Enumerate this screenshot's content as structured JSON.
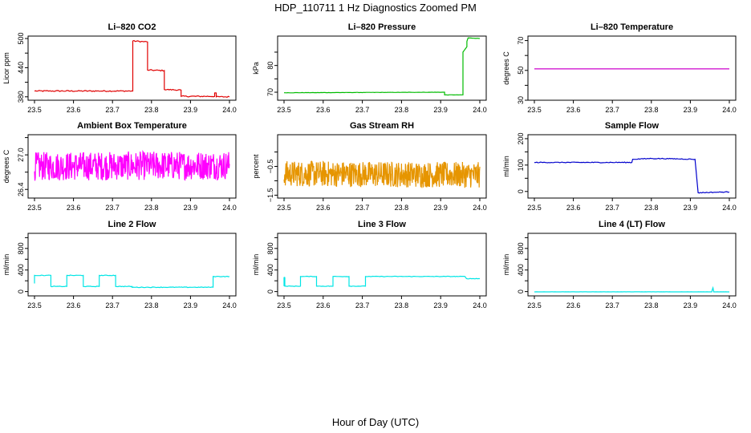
{
  "figure": {
    "title": "HDP_110711  1 Hz Diagnostics Zoomed PM",
    "xlabel": "Hour of Day (UTC)"
  },
  "chart_data": [
    {
      "type": "line",
      "title": "Li–820 CO2",
      "ylabel": "Licor ppm",
      "color": "#e00000",
      "xlim": [
        23.5,
        24.0
      ],
      "xticks": [
        "23.5",
        "23.6",
        "23.7",
        "23.8",
        "23.9",
        "24.0"
      ],
      "ylim": [
        373,
        505
      ],
      "yticks": [
        "380",
        "440",
        "500"
      ],
      "ytick_values": [
        380,
        440,
        500
      ],
      "extra_ytick_values": [
        410,
        470
      ],
      "noise": 1.2,
      "x": [
        23.5,
        23.752,
        23.752,
        23.79,
        23.79,
        23.833,
        23.833,
        23.876,
        23.876,
        23.962,
        23.962,
        23.966,
        23.966,
        24.0
      ],
      "y": [
        392,
        392,
        495,
        493,
        435,
        434,
        395,
        394,
        381,
        381,
        388,
        388,
        380,
        380
      ]
    },
    {
      "type": "line",
      "title": "Li–820 Pressure",
      "ylabel": "kPa",
      "color": "#00bb00",
      "xlim": [
        23.5,
        24.0
      ],
      "xticks": [
        "23.5",
        "23.6",
        "23.7",
        "23.8",
        "23.9",
        "24.0"
      ],
      "ylim": [
        67,
        91
      ],
      "yticks": [
        "70",
        "80"
      ],
      "ytick_values": [
        70,
        80
      ],
      "extra_ytick_values": [
        75,
        85
      ],
      "noise": 0.05,
      "x": [
        23.5,
        23.91,
        23.91,
        23.957,
        23.957,
        23.967,
        23.967,
        23.97,
        23.97,
        24.0
      ],
      "y": [
        69.8,
        70.0,
        69.0,
        69.0,
        85.0,
        87.0,
        89.0,
        90.3,
        90.3,
        90.1
      ]
    },
    {
      "type": "line",
      "title": "Li–820 Temperature",
      "ylabel": "degrees C",
      "color": "#cc00cc",
      "xlim": [
        23.5,
        24.0
      ],
      "xticks": [
        "23.5",
        "23.6",
        "23.7",
        "23.8",
        "23.9",
        "24.0"
      ],
      "ylim": [
        30,
        73
      ],
      "yticks": [
        "30",
        "50",
        "70"
      ],
      "ytick_values": [
        30,
        50,
        70
      ],
      "extra_ytick_values": [
        40,
        60
      ],
      "noise": 0,
      "x": [
        23.5,
        24.0
      ],
      "y": [
        51,
        51
      ]
    },
    {
      "type": "line",
      "title": "Ambient Box Temperature",
      "ylabel": "degrees C",
      "color": "#ff00ff",
      "xlim": [
        23.5,
        24.0
      ],
      "xticks": [
        "23.5",
        "23.6",
        "23.7",
        "23.8",
        "23.9",
        "24.0"
      ],
      "ylim": [
        26.25,
        27.35
      ],
      "yticks": [
        "26.4",
        "27.0"
      ],
      "ytick_values": [
        26.4,
        27.0
      ],
      "extra_ytick_values": [
        26.7,
        27.3
      ],
      "noise": 0.25,
      "points": 500,
      "x": [
        23.5,
        24.0
      ],
      "y": [
        26.8,
        26.82
      ]
    },
    {
      "type": "line",
      "title": "Gas Stream RH",
      "ylabel": "percent",
      "color": "#e69500",
      "xlim": [
        23.5,
        24.0
      ],
      "xticks": [
        "23.5",
        "23.6",
        "23.7",
        "23.8",
        "23.9",
        "24.0"
      ],
      "ylim": [
        -1.6,
        0.6
      ],
      "yticks": [
        "−1.5",
        "−0.5"
      ],
      "ytick_values": [
        -1.5,
        -0.5
      ],
      "extra_ytick_values": [
        -1.0,
        0.0
      ],
      "noise": 0.45,
      "points": 600,
      "x": [
        23.5,
        24.0
      ],
      "y": [
        -0.75,
        -0.8
      ]
    },
    {
      "type": "line",
      "title": "Sample Flow",
      "ylabel": "ml/min",
      "color": "#0000cc",
      "xlim": [
        23.5,
        24.0
      ],
      "xticks": [
        "23.5",
        "23.6",
        "23.7",
        "23.8",
        "23.9",
        "24.0"
      ],
      "ylim": [
        -25,
        215
      ],
      "yticks": [
        "0",
        "100",
        "200"
      ],
      "ytick_values": [
        0,
        100,
        200
      ],
      "extra_ytick_values": [
        50,
        150
      ],
      "noise": 1.5,
      "x": [
        23.5,
        23.75,
        23.752,
        23.8,
        23.85,
        23.912,
        23.92,
        23.96,
        24.0
      ],
      "y": [
        110,
        110,
        122,
        125,
        124,
        122,
        -5,
        -3,
        -2
      ]
    },
    {
      "type": "line",
      "title": "Line 2 Flow",
      "ylabel": "ml/min",
      "color": "#00e5e5",
      "xlim": [
        23.5,
        24.0
      ],
      "xticks": [
        "23.5",
        "23.6",
        "23.7",
        "23.8",
        "23.9",
        "24.0"
      ],
      "ylim": [
        -80,
        1080
      ],
      "yticks": [
        "0",
        "400",
        "800"
      ],
      "ytick_values": [
        0,
        400,
        800
      ],
      "extra_ytick_values": [
        200,
        600,
        1000
      ],
      "noise": 6,
      "x": [
        23.5,
        23.5,
        23.542,
        23.542,
        23.583,
        23.583,
        23.625,
        23.625,
        23.666,
        23.666,
        23.708,
        23.708,
        23.75,
        23.75,
        23.958,
        23.958,
        24.0
      ],
      "y": [
        150,
        300,
        300,
        95,
        95,
        300,
        300,
        95,
        95,
        300,
        300,
        95,
        95,
        80,
        80,
        280,
        280
      ]
    },
    {
      "type": "line",
      "title": "Line 3 Flow",
      "ylabel": "ml/min",
      "color": "#00e5e5",
      "xlim": [
        23.5,
        24.0
      ],
      "xticks": [
        "23.5",
        "23.6",
        "23.7",
        "23.8",
        "23.9",
        "24.0"
      ],
      "ylim": [
        -80,
        1080
      ],
      "yticks": [
        "0",
        "400",
        "800"
      ],
      "ytick_values": [
        0,
        400,
        800
      ],
      "extra_ytick_values": [
        200,
        600,
        1000
      ],
      "noise": 5,
      "x": [
        23.5,
        23.5,
        23.502,
        23.502,
        23.542,
        23.542,
        23.583,
        23.583,
        23.625,
        23.625,
        23.666,
        23.666,
        23.708,
        23.708,
        23.962,
        23.966,
        24.0
      ],
      "y": [
        100,
        260,
        260,
        100,
        100,
        280,
        280,
        100,
        100,
        280,
        280,
        100,
        100,
        280,
        280,
        240,
        240
      ]
    },
    {
      "type": "line",
      "title": "Line 4 (LT) Flow",
      "ylabel": "ml/min",
      "color": "#00e5e5",
      "xlim": [
        23.5,
        24.0
      ],
      "xticks": [
        "23.5",
        "23.6",
        "23.7",
        "23.8",
        "23.9",
        "24.0"
      ],
      "ylim": [
        -80,
        1080
      ],
      "yticks": [
        "0",
        "400",
        "800"
      ],
      "ytick_values": [
        0,
        400,
        800
      ],
      "extra_ytick_values": [
        200,
        600,
        1000
      ],
      "noise": 1,
      "x": [
        23.5,
        23.955,
        23.956,
        23.958,
        23.96,
        24.0
      ],
      "y": [
        -5,
        -5,
        30,
        70,
        -5,
        -5
      ]
    }
  ]
}
